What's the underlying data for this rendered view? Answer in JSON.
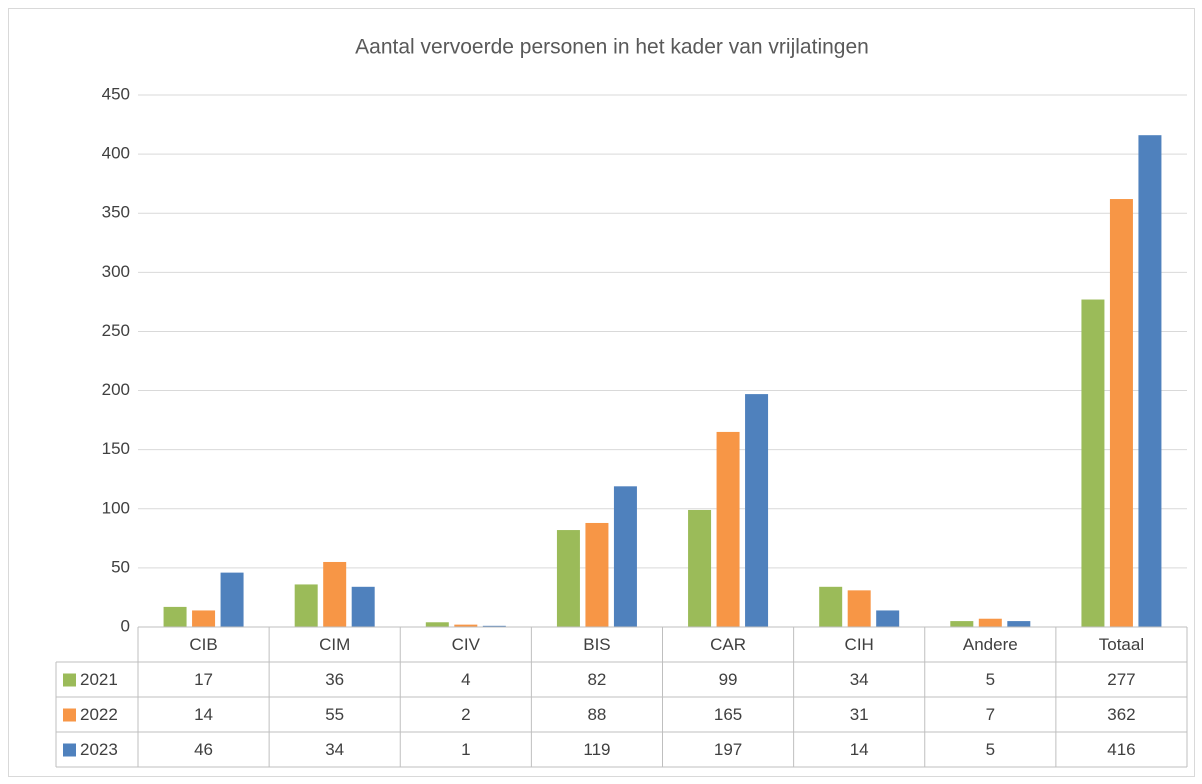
{
  "chart_data": {
    "type": "bar",
    "title": "Aantal vervoerde personen in het kader van vrijlatingen",
    "categories": [
      "CIB",
      "CIM",
      "CIV",
      "BIS",
      "CAR",
      "CIH",
      "Andere",
      "Totaal"
    ],
    "series": [
      {
        "name": "2021",
        "color": "#9bbb59",
        "values": [
          17,
          36,
          4,
          82,
          99,
          34,
          5,
          277
        ]
      },
      {
        "name": "2022",
        "color": "#f79646",
        "values": [
          14,
          55,
          2,
          88,
          165,
          31,
          7,
          362
        ]
      },
      {
        "name": "2023",
        "color": "#4f81bd",
        "values": [
          46,
          34,
          1,
          119,
          197,
          14,
          5,
          416
        ]
      }
    ],
    "ylim": [
      0,
      450
    ],
    "yticks": [
      0,
      50,
      100,
      150,
      200,
      250,
      300,
      350,
      400,
      450
    ],
    "grid": true,
    "data_table": true
  }
}
